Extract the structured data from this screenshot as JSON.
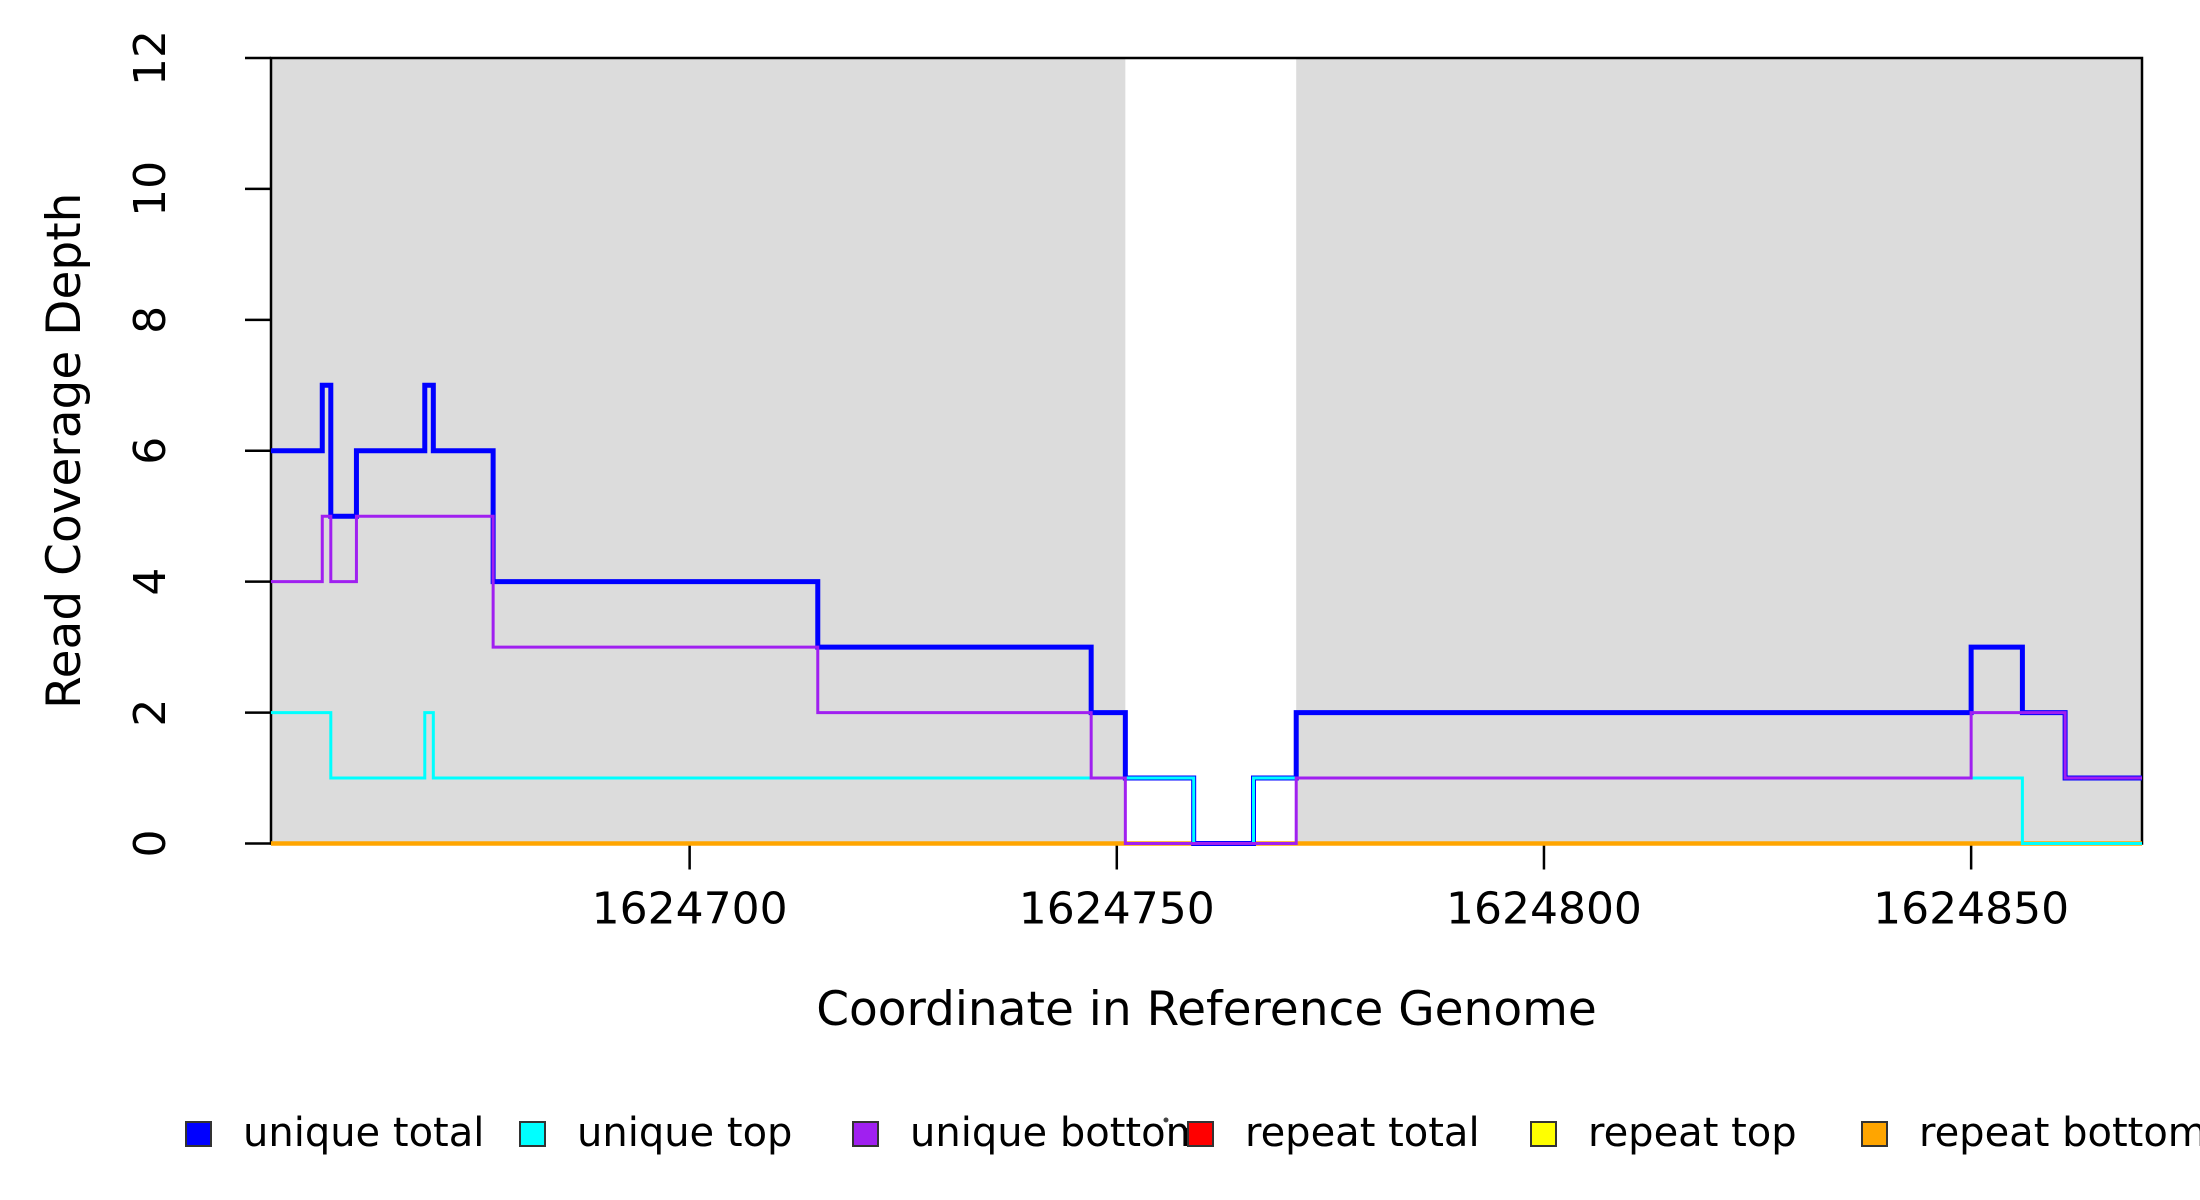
{
  "figure": {
    "title": "",
    "xlabel": "Coordinate in Reference Genome",
    "ylabel": "Read Coverage Depth"
  },
  "chart_data": {
    "type": "line",
    "subtype": "step",
    "title": "",
    "xlabel": "Coordinate in Reference Genome",
    "ylabel": "Read Coverage Depth",
    "xlim": [
      1624651,
      1624870
    ],
    "ylim": [
      0,
      12
    ],
    "x_ticks": [
      1624700,
      1624750,
      1624800,
      1624850
    ],
    "y_ticks": [
      0,
      2,
      4,
      6,
      8,
      10,
      12
    ],
    "grid": false,
    "legend_position": "bottom",
    "plot_background": "#FFFFFF",
    "shade_color": "#DCDCDC",
    "shaded_regions": [
      {
        "from": 1624651,
        "to": 1624751
      },
      {
        "from": 1624771,
        "to": 1624870
      }
    ],
    "series": [
      {
        "name": "unique total",
        "color": "#0000FF",
        "line_width": 5,
        "steps": [
          [
            1624651,
            6
          ],
          [
            1624657,
            7
          ],
          [
            1624658,
            5
          ],
          [
            1624661,
            6
          ],
          [
            1624669,
            7
          ],
          [
            1624670,
            6
          ],
          [
            1624677,
            4
          ],
          [
            1624715,
            3
          ],
          [
            1624747,
            2
          ],
          [
            1624751,
            1
          ],
          [
            1624759,
            0
          ],
          [
            1624766,
            1
          ],
          [
            1624771,
            2
          ],
          [
            1624850,
            3
          ],
          [
            1624856,
            2
          ],
          [
            1624861,
            1
          ]
        ]
      },
      {
        "name": "unique top",
        "color": "#00FFFF",
        "line_width": 3,
        "steps": [
          [
            1624651,
            2
          ],
          [
            1624658,
            1
          ],
          [
            1624669,
            2
          ],
          [
            1624670,
            1
          ],
          [
            1624759,
            0
          ],
          [
            1624766,
            1
          ],
          [
            1624856,
            0
          ]
        ]
      },
      {
        "name": "unique bottom",
        "color": "#A020F0",
        "line_width": 3,
        "steps": [
          [
            1624651,
            4
          ],
          [
            1624657,
            5
          ],
          [
            1624658,
            4
          ],
          [
            1624661,
            5
          ],
          [
            1624677,
            3
          ],
          [
            1624715,
            2
          ],
          [
            1624747,
            1
          ],
          [
            1624751,
            0
          ],
          [
            1624771,
            1
          ],
          [
            1624850,
            2
          ],
          [
            1624861,
            1
          ]
        ]
      },
      {
        "name": "repeat total",
        "color": "#FF0000",
        "line_width": 2.5,
        "steps": [
          [
            1624651,
            0
          ]
        ]
      },
      {
        "name": "repeat top",
        "color": "#FFFF00",
        "line_width": 2.5,
        "steps": [
          [
            1624651,
            0
          ]
        ]
      },
      {
        "name": "repeat bottom",
        "color": "#FFA500",
        "line_width": 4.5,
        "steps": [
          [
            1624651,
            0
          ]
        ]
      }
    ],
    "draw_order": [
      "repeat total",
      "repeat top",
      "repeat bottom",
      "unique total",
      "unique top",
      "unique bottom"
    ],
    "legend": [
      {
        "label": "unique total",
        "color": "#0000FF"
      },
      {
        "label": "unique top",
        "color": "#00FFFF"
      },
      {
        "label": "unique bottom",
        "color": "#A020F0"
      },
      {
        "label": "repeat total",
        "color": "#FF0000"
      },
      {
        "label": "repeat top",
        "color": "#FFFF00"
      },
      {
        "label": "repeat bottom",
        "color": "#FFA500"
      }
    ],
    "annotations": {
      "stray_dot": {
        "x": 1166,
        "y": 1120,
        "color": "#444444"
      }
    }
  }
}
